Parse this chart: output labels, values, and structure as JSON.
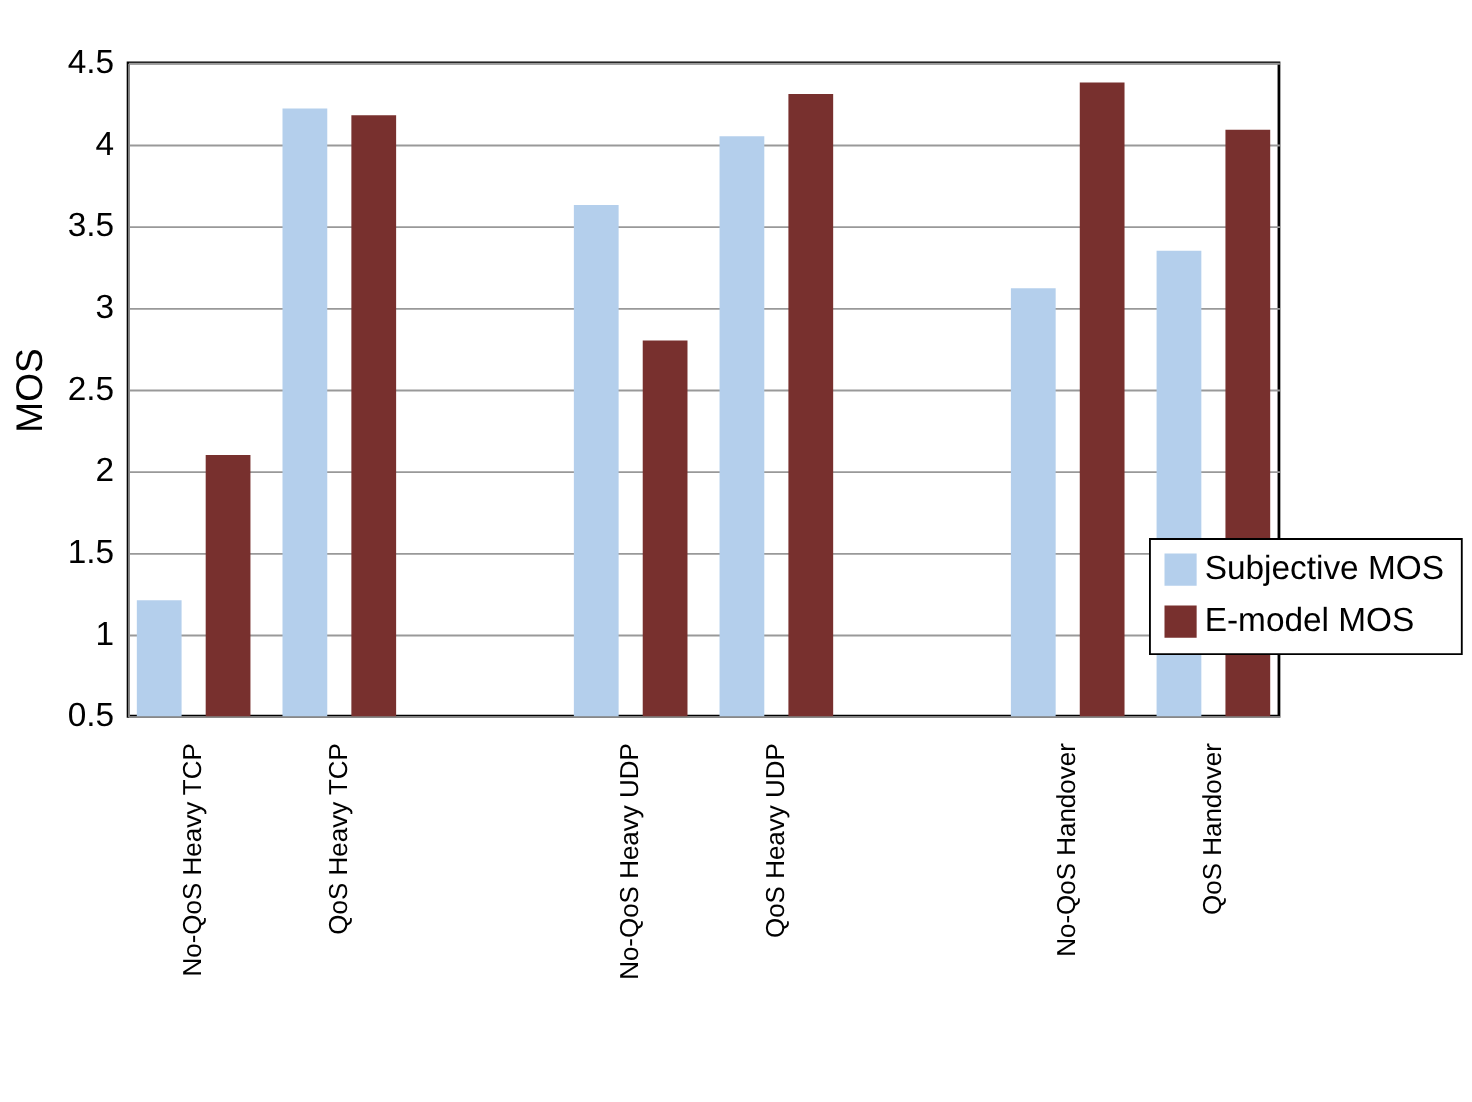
{
  "chart_data": {
    "type": "bar",
    "ylabel": "MOS",
    "categories": [
      "No-QoS Heavy TCP",
      "QoS Heavy TCP",
      null,
      "No-QoS Heavy UDP",
      "QoS Heavy UDP",
      null,
      "No-QoS Handover",
      "QoS Handover"
    ],
    "series": [
      {
        "name": "Subjective MOS",
        "color": "#b4cfec",
        "values": [
          1.21,
          4.22,
          null,
          3.63,
          4.05,
          null,
          3.12,
          3.35
        ]
      },
      {
        "name": "E-model MOS",
        "color": "#78302e",
        "values": [
          2.1,
          4.18,
          null,
          2.8,
          4.31,
          null,
          4.38,
          4.09
        ]
      }
    ],
    "ylim": [
      0.5,
      4.5
    ],
    "yticks": [
      0.5,
      1,
      1.5,
      2,
      2.5,
      3,
      3.5,
      4,
      4.5
    ],
    "grid": "y",
    "legend": "bottom right"
  }
}
